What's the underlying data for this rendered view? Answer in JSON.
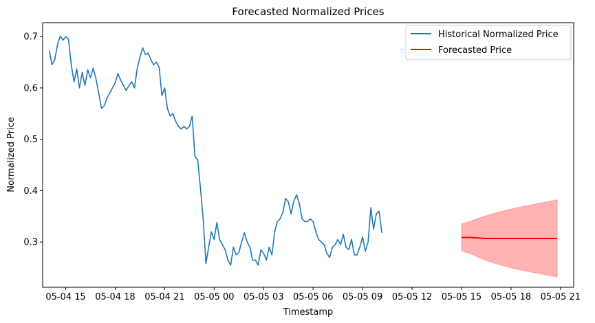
{
  "chart_data": {
    "type": "line",
    "title": "Forecasted Normalized Prices",
    "xlabel": "Timestamp",
    "ylabel": "Normalized Price",
    "xlim": [
      "2024-05-04T13:36",
      "2024-05-05T21:48"
    ],
    "ylim": [
      0.212,
      0.727
    ],
    "x_ticks": [
      {
        "x": "2024-05-04T15:00",
        "label": "05-04 15"
      },
      {
        "x": "2024-05-04T18:00",
        "label": "05-04 18"
      },
      {
        "x": "2024-05-04T21:00",
        "label": "05-04 21"
      },
      {
        "x": "2024-05-05T00:00",
        "label": "05-05 00"
      },
      {
        "x": "2024-05-05T03:00",
        "label": "05-05 03"
      },
      {
        "x": "2024-05-05T06:00",
        "label": "05-05 06"
      },
      {
        "x": "2024-05-05T09:00",
        "label": "05-05 09"
      },
      {
        "x": "2024-05-05T12:00",
        "label": "05-05 12"
      },
      {
        "x": "2024-05-05T15:00",
        "label": "05-05 15"
      },
      {
        "x": "2024-05-05T18:00",
        "label": "05-05 18"
      },
      {
        "x": "2024-05-05T21:00",
        "label": "05-05 21"
      }
    ],
    "y_ticks": [
      {
        "y": 0.3,
        "label": "0.3"
      },
      {
        "y": 0.4,
        "label": "0.4"
      },
      {
        "y": 0.5,
        "label": "0.5"
      },
      {
        "y": 0.6,
        "label": "0.6"
      },
      {
        "y": 0.7,
        "label": "0.7"
      }
    ],
    "grid": false,
    "legend_position": "top-right",
    "series": [
      {
        "name": "Historical Normalized Price",
        "color": "#1f77b4",
        "points": [
          [
            "2024-05-04T14:00",
            0.673
          ],
          [
            "2024-05-04T14:10",
            0.645
          ],
          [
            "2024-05-04T14:20",
            0.655
          ],
          [
            "2024-05-04T14:30",
            0.684
          ],
          [
            "2024-05-04T14:40",
            0.701
          ],
          [
            "2024-05-04T14:50",
            0.693
          ],
          [
            "2024-05-04T15:00",
            0.7
          ],
          [
            "2024-05-04T15:10",
            0.695
          ],
          [
            "2024-05-04T15:20",
            0.645
          ],
          [
            "2024-05-04T15:30",
            0.612
          ],
          [
            "2024-05-04T15:40",
            0.637
          ],
          [
            "2024-05-04T15:50",
            0.6
          ],
          [
            "2024-05-04T16:00",
            0.63
          ],
          [
            "2024-05-04T16:10",
            0.605
          ],
          [
            "2024-05-04T16:20",
            0.635
          ],
          [
            "2024-05-04T16:30",
            0.62
          ],
          [
            "2024-05-04T16:40",
            0.638
          ],
          [
            "2024-05-04T16:50",
            0.618
          ],
          [
            "2024-05-04T17:00",
            0.59
          ],
          [
            "2024-05-04T17:10",
            0.56
          ],
          [
            "2024-05-04T17:20",
            0.565
          ],
          [
            "2024-05-04T17:30",
            0.58
          ],
          [
            "2024-05-04T17:40",
            0.59
          ],
          [
            "2024-05-04T17:50",
            0.6
          ],
          [
            "2024-05-04T18:00",
            0.61
          ],
          [
            "2024-05-04T18:10",
            0.628
          ],
          [
            "2024-05-04T18:20",
            0.615
          ],
          [
            "2024-05-04T18:30",
            0.605
          ],
          [
            "2024-05-04T18:40",
            0.595
          ],
          [
            "2024-05-04T18:50",
            0.605
          ],
          [
            "2024-05-04T19:00",
            0.612
          ],
          [
            "2024-05-04T19:10",
            0.6
          ],
          [
            "2024-05-04T19:20",
            0.638
          ],
          [
            "2024-05-04T19:30",
            0.66
          ],
          [
            "2024-05-04T19:40",
            0.678
          ],
          [
            "2024-05-04T19:50",
            0.665
          ],
          [
            "2024-05-04T20:00",
            0.668
          ],
          [
            "2024-05-04T20:10",
            0.655
          ],
          [
            "2024-05-04T20:20",
            0.645
          ],
          [
            "2024-05-04T20:30",
            0.65
          ],
          [
            "2024-05-04T20:40",
            0.64
          ],
          [
            "2024-05-04T20:50",
            0.585
          ],
          [
            "2024-05-04T21:00",
            0.6
          ],
          [
            "2024-05-04T21:10",
            0.56
          ],
          [
            "2024-05-04T21:20",
            0.545
          ],
          [
            "2024-05-04T21:30",
            0.55
          ],
          [
            "2024-05-04T21:40",
            0.535
          ],
          [
            "2024-05-04T21:50",
            0.525
          ],
          [
            "2024-05-04T22:00",
            0.52
          ],
          [
            "2024-05-04T22:10",
            0.525
          ],
          [
            "2024-05-04T22:20",
            0.52
          ],
          [
            "2024-05-04T22:30",
            0.525
          ],
          [
            "2024-05-04T22:40",
            0.545
          ],
          [
            "2024-05-04T22:50",
            0.467
          ],
          [
            "2024-05-04T23:00",
            0.46
          ],
          [
            "2024-05-04T23:10",
            0.405
          ],
          [
            "2024-05-04T23:20",
            0.345
          ],
          [
            "2024-05-04T23:30",
            0.258
          ],
          [
            "2024-05-04T23:40",
            0.29
          ],
          [
            "2024-05-04T23:50",
            0.32
          ],
          [
            "2024-05-05T00:00",
            0.305
          ],
          [
            "2024-05-05T00:10",
            0.338
          ],
          [
            "2024-05-05T00:20",
            0.305
          ],
          [
            "2024-05-05T00:30",
            0.295
          ],
          [
            "2024-05-05T00:40",
            0.285
          ],
          [
            "2024-05-05T00:50",
            0.265
          ],
          [
            "2024-05-05T01:00",
            0.255
          ],
          [
            "2024-05-05T01:10",
            0.29
          ],
          [
            "2024-05-05T01:20",
            0.275
          ],
          [
            "2024-05-05T01:30",
            0.28
          ],
          [
            "2024-05-05T01:40",
            0.3
          ],
          [
            "2024-05-05T01:50",
            0.318
          ],
          [
            "2024-05-05T02:00",
            0.3
          ],
          [
            "2024-05-05T02:10",
            0.29
          ],
          [
            "2024-05-05T02:20",
            0.265
          ],
          [
            "2024-05-05T02:30",
            0.265
          ],
          [
            "2024-05-05T02:40",
            0.255
          ],
          [
            "2024-05-05T02:50",
            0.285
          ],
          [
            "2024-05-05T03:00",
            0.278
          ],
          [
            "2024-05-05T03:10",
            0.265
          ],
          [
            "2024-05-05T03:20",
            0.29
          ],
          [
            "2024-05-05T03:30",
            0.275
          ],
          [
            "2024-05-05T03:40",
            0.32
          ],
          [
            "2024-05-05T03:50",
            0.34
          ],
          [
            "2024-05-05T04:00",
            0.345
          ],
          [
            "2024-05-05T04:10",
            0.358
          ],
          [
            "2024-05-05T04:20",
            0.385
          ],
          [
            "2024-05-05T04:30",
            0.378
          ],
          [
            "2024-05-05T04:40",
            0.355
          ],
          [
            "2024-05-05T04:50",
            0.38
          ],
          [
            "2024-05-05T05:00",
            0.392
          ],
          [
            "2024-05-05T05:10",
            0.375
          ],
          [
            "2024-05-05T05:20",
            0.345
          ],
          [
            "2024-05-05T05:30",
            0.34
          ],
          [
            "2024-05-05T05:40",
            0.34
          ],
          [
            "2024-05-05T05:50",
            0.345
          ],
          [
            "2024-05-05T06:00",
            0.34
          ],
          [
            "2024-05-05T06:10",
            0.32
          ],
          [
            "2024-05-05T06:20",
            0.305
          ],
          [
            "2024-05-05T06:30",
            0.3
          ],
          [
            "2024-05-05T06:40",
            0.295
          ],
          [
            "2024-05-05T06:50",
            0.278
          ],
          [
            "2024-05-05T07:00",
            0.27
          ],
          [
            "2024-05-05T07:10",
            0.29
          ],
          [
            "2024-05-05T07:20",
            0.295
          ],
          [
            "2024-05-05T07:30",
            0.305
          ],
          [
            "2024-05-05T07:40",
            0.295
          ],
          [
            "2024-05-05T07:50",
            0.315
          ],
          [
            "2024-05-05T08:00",
            0.29
          ],
          [
            "2024-05-05T08:10",
            0.285
          ],
          [
            "2024-05-05T08:20",
            0.305
          ],
          [
            "2024-05-05T08:30",
            0.275
          ],
          [
            "2024-05-05T08:40",
            0.275
          ],
          [
            "2024-05-05T08:50",
            0.29
          ],
          [
            "2024-05-05T09:00",
            0.31
          ],
          [
            "2024-05-05T09:10",
            0.282
          ],
          [
            "2024-05-05T09:20",
            0.3
          ],
          [
            "2024-05-05T09:30",
            0.367
          ],
          [
            "2024-05-05T09:40",
            0.325
          ],
          [
            "2024-05-05T09:50",
            0.355
          ],
          [
            "2024-05-05T10:00",
            0.36
          ],
          [
            "2024-05-05T10:10",
            0.318
          ]
        ]
      },
      {
        "name": "Forecasted Price",
        "color": "#ff0000",
        "band_color": "#ff9999",
        "points": [
          [
            "2024-05-05T15:00",
            0.309
          ],
          [
            "2024-05-05T15:30",
            0.309
          ],
          [
            "2024-05-05T16:00",
            0.308
          ],
          [
            "2024-05-05T16:30",
            0.307
          ],
          [
            "2024-05-05T17:00",
            0.307
          ],
          [
            "2024-05-05T18:00",
            0.307
          ],
          [
            "2024-05-05T19:00",
            0.307
          ],
          [
            "2024-05-05T20:00",
            0.307
          ],
          [
            "2024-05-05T20:48",
            0.307
          ]
        ],
        "band_upper": [
          [
            "2024-05-05T15:00",
            0.335
          ],
          [
            "2024-05-05T15:30",
            0.34
          ],
          [
            "2024-05-05T16:00",
            0.346
          ],
          [
            "2024-05-05T16:30",
            0.351
          ],
          [
            "2024-05-05T17:00",
            0.356
          ],
          [
            "2024-05-05T18:00",
            0.364
          ],
          [
            "2024-05-05T19:00",
            0.371
          ],
          [
            "2024-05-05T20:00",
            0.377
          ],
          [
            "2024-05-05T20:48",
            0.382
          ]
        ],
        "band_lower": [
          [
            "2024-05-05T15:00",
            0.283
          ],
          [
            "2024-05-05T15:30",
            0.278
          ],
          [
            "2024-05-05T16:00",
            0.271
          ],
          [
            "2024-05-05T16:30",
            0.264
          ],
          [
            "2024-05-05T17:00",
            0.259
          ],
          [
            "2024-05-05T18:00",
            0.25
          ],
          [
            "2024-05-05T19:00",
            0.243
          ],
          [
            "2024-05-05T20:00",
            0.237
          ],
          [
            "2024-05-05T20:48",
            0.232
          ]
        ]
      }
    ]
  }
}
